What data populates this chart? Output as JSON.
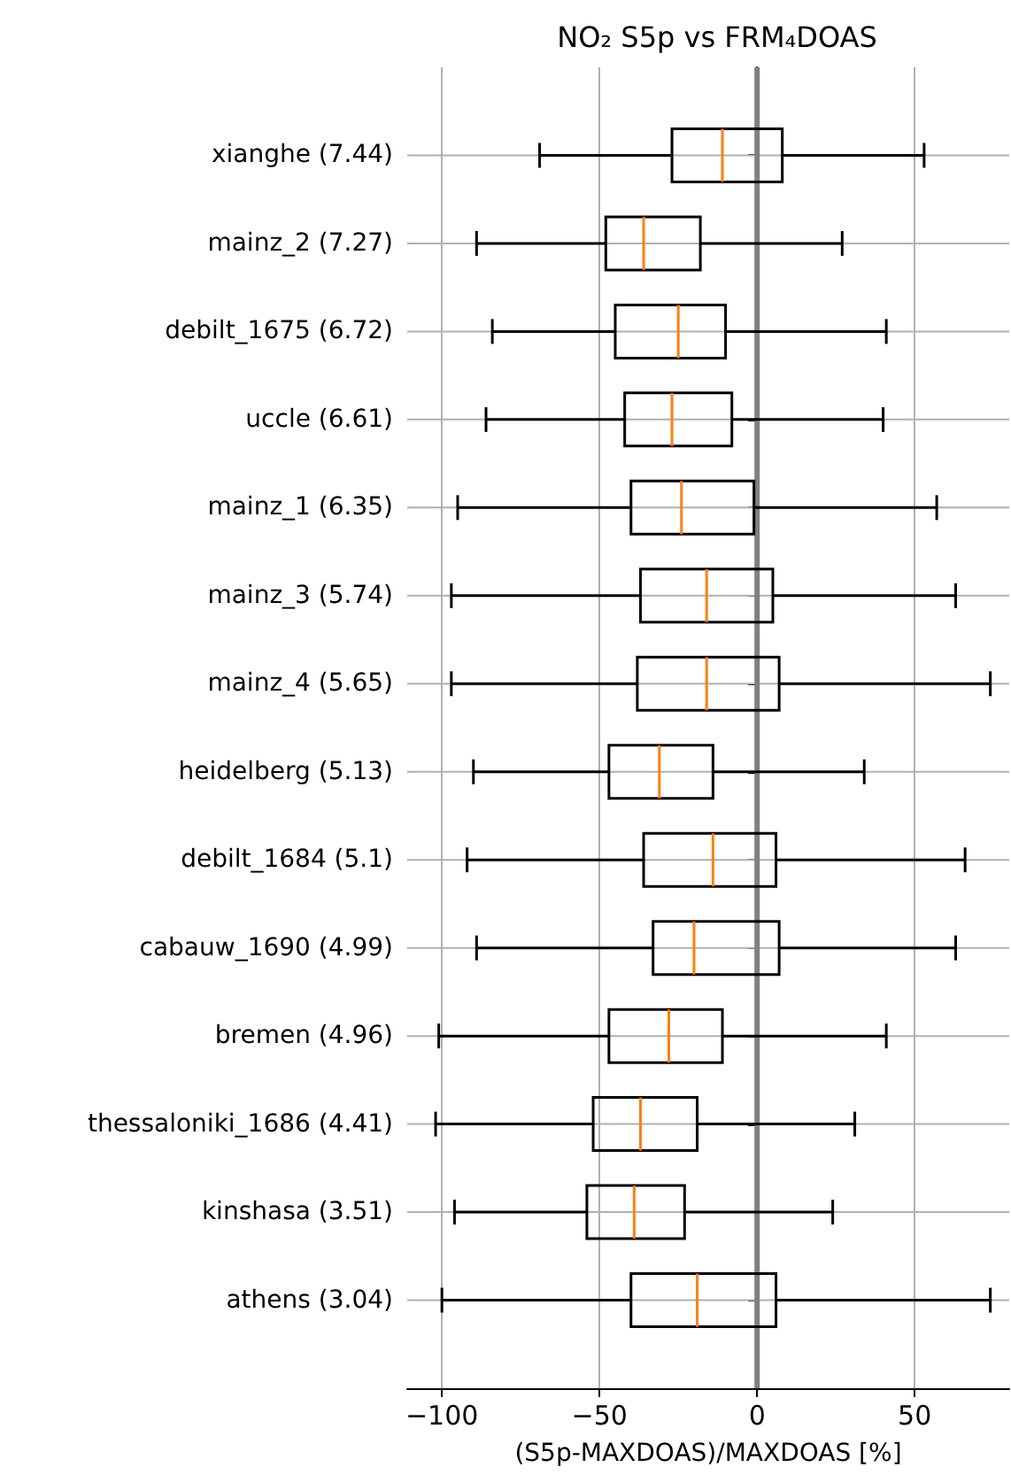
{
  "chart_data": {
    "type": "box",
    "orientation": "horizontal",
    "title": "NO₂ S5p vs FRM₄DOAS",
    "xlabel": "(S5p-MAXDOAS)/MAXDOAS [%]",
    "categories": [
      "xianghe (7.44)",
      "mainz_2 (7.27)",
      "debilt_1675 (6.72)",
      "uccle (6.61)",
      "mainz_1 (6.35)",
      "mainz_3 (5.74)",
      "mainz_4 (5.65)",
      "heidelberg (5.13)",
      "debilt_1684 (5.1)",
      "cabauw_1690 (4.99)",
      "bremen (4.96)",
      "thessaloniki_1686 (4.41)",
      "kinshasa (3.51)",
      "athens (3.04)"
    ],
    "series": [
      {
        "color": "#000000",
        "boxes": [
          {
            "low": -69,
            "q1": -27,
            "median": -11,
            "q3": 8,
            "high": 53
          },
          {
            "low": -89,
            "q1": -48,
            "median": -36,
            "q3": -18,
            "high": 27
          },
          {
            "low": -84,
            "q1": -45,
            "median": -25,
            "q3": -10,
            "high": 41
          },
          {
            "low": -86,
            "q1": -42,
            "median": -27,
            "q3": -8,
            "high": 40
          },
          {
            "low": -95,
            "q1": -40,
            "median": -24,
            "q3": -1,
            "high": 57
          },
          {
            "low": -97,
            "q1": -37,
            "median": -16,
            "q3": 5,
            "high": 63
          },
          {
            "low": -97,
            "q1": -38,
            "median": -16,
            "q3": 7,
            "high": 74
          },
          {
            "low": -90,
            "q1": -47,
            "median": -31,
            "q3": -14,
            "high": 34
          },
          {
            "low": -92,
            "q1": -36,
            "median": -14,
            "q3": 6,
            "high": 66
          },
          {
            "low": -89,
            "q1": -33,
            "median": -20,
            "q3": 7,
            "high": 63
          },
          {
            "low": -101,
            "q1": -47,
            "median": -28,
            "q3": -11,
            "high": 41
          },
          {
            "low": -102,
            "q1": -52,
            "median": -37,
            "q3": -19,
            "high": 31
          },
          {
            "low": -96,
            "q1": -54,
            "median": -39,
            "q3": -23,
            "high": 24
          },
          {
            "low": -100,
            "q1": -40,
            "median": -19,
            "q3": 6,
            "high": 74
          }
        ]
      }
    ],
    "xlim": [
      -111,
      80
    ],
    "xticks": [
      -100,
      -50,
      0,
      50
    ],
    "grid": true,
    "ref_lines": [
      {
        "axis": "x",
        "value": 0,
        "color": "#808080"
      }
    ]
  }
}
